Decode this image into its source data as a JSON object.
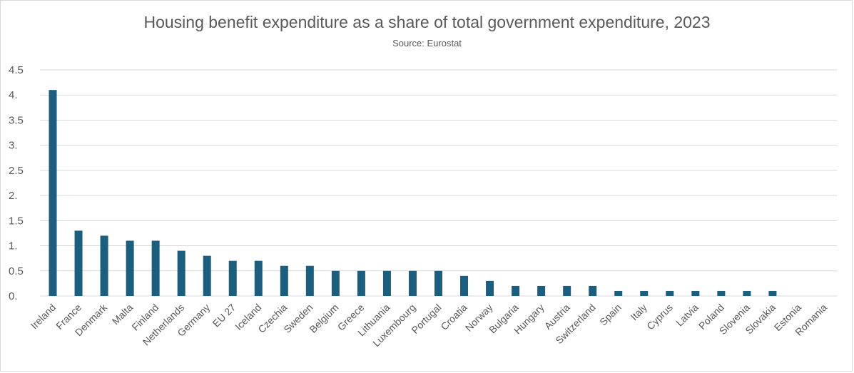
{
  "chart_data": {
    "type": "bar",
    "title": "Housing benefit expenditure as a share of total government expenditure, 2023",
    "subtitle": "Source: Eurostat",
    "xlabel": "",
    "ylabel": "",
    "ylim": [
      0,
      4.5
    ],
    "y_ticks": [
      "0.",
      "0.5",
      "1.",
      "1.5",
      "2.",
      "2.5",
      "3.",
      "3.5",
      "4.",
      "4.5"
    ],
    "y_tick_values": [
      0,
      0.5,
      1,
      1.5,
      2,
      2.5,
      3,
      3.5,
      4,
      4.5
    ],
    "grid": true,
    "bar_color": "#1a5e80",
    "grid_color": "#d9d9d9",
    "categories": [
      "Ireland",
      "France",
      "Denmark",
      "Malta",
      "Finland",
      "Netherlands",
      "Germany",
      "EU 27",
      "Iceland",
      "Czechia",
      "Sweden",
      "Belgium",
      "Greece",
      "Lithuania",
      "Luxembourg",
      "Portugal",
      "Croatia",
      "Norway",
      "Bulgaria",
      "Hungary",
      "Austria",
      "Switzerland",
      "Spain",
      "Italy",
      "Cyprus",
      "Latvia",
      "Poland",
      "Slovenia",
      "Slovakia",
      "Estonia",
      "Romania"
    ],
    "values": [
      4.1,
      1.3,
      1.2,
      1.1,
      1.1,
      0.9,
      0.8,
      0.7,
      0.7,
      0.6,
      0.6,
      0.5,
      0.5,
      0.5,
      0.5,
      0.5,
      0.4,
      0.3,
      0.2,
      0.2,
      0.2,
      0.2,
      0.1,
      0.1,
      0.1,
      0.1,
      0.1,
      0.1,
      0.1,
      0.0,
      0.0
    ]
  }
}
